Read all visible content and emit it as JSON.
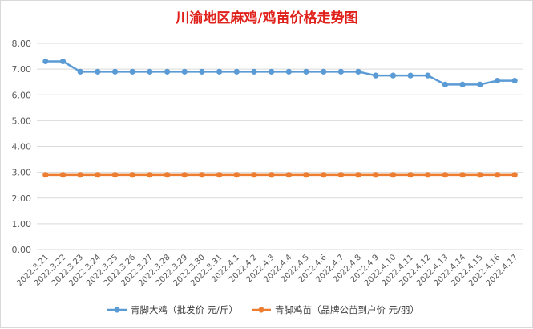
{
  "chart_data": {
    "type": "line",
    "title": "川渝地区麻鸡/鸡苗价格走势图",
    "categories": [
      "2022.3.21",
      "2022.3.22",
      "2022.3.23",
      "2022.3.24",
      "2022.3.25",
      "2022.3.26",
      "2022.3.27",
      "2022.3.28",
      "2022.3.29",
      "2022.3.30",
      "2022.3.31",
      "2022.4.1",
      "2022.4.2",
      "2022.4.3",
      "2022.4.4",
      "2022.4.5",
      "2022.4.6",
      "2022.4.7",
      "2022.4.8",
      "2022.4.9",
      "2022.4.10",
      "2022.4.11",
      "2022.4.12",
      "2022.4.13",
      "2022.4.14",
      "2022.4.15",
      "2022.4.16",
      "2022.4.17"
    ],
    "series": [
      {
        "name": "青脚大鸡（批发价 元/斤）",
        "color": "#5b9bd5",
        "values": [
          7.3,
          7.3,
          6.9,
          6.9,
          6.9,
          6.9,
          6.9,
          6.9,
          6.9,
          6.9,
          6.9,
          6.9,
          6.9,
          6.9,
          6.9,
          6.9,
          6.9,
          6.9,
          6.9,
          6.75,
          6.75,
          6.75,
          6.75,
          6.4,
          6.4,
          6.4,
          6.55,
          6.55
        ]
      },
      {
        "name": "青脚鸡苗（品牌公苗到户价 元/羽）",
        "color": "#ed7d31",
        "values": [
          2.9,
          2.9,
          2.9,
          2.9,
          2.9,
          2.9,
          2.9,
          2.9,
          2.9,
          2.9,
          2.9,
          2.9,
          2.9,
          2.9,
          2.9,
          2.9,
          2.9,
          2.9,
          2.9,
          2.9,
          2.9,
          2.9,
          2.9,
          2.9,
          2.9,
          2.9,
          2.9,
          2.9
        ]
      }
    ],
    "yticks": [
      "0.00",
      "1.00",
      "2.00",
      "3.00",
      "4.00",
      "5.00",
      "6.00",
      "7.00",
      "8.00"
    ],
    "ylim": [
      0,
      8
    ],
    "grid": true,
    "legend_position": "bottom",
    "gridline_color": "#d9d9d9"
  }
}
